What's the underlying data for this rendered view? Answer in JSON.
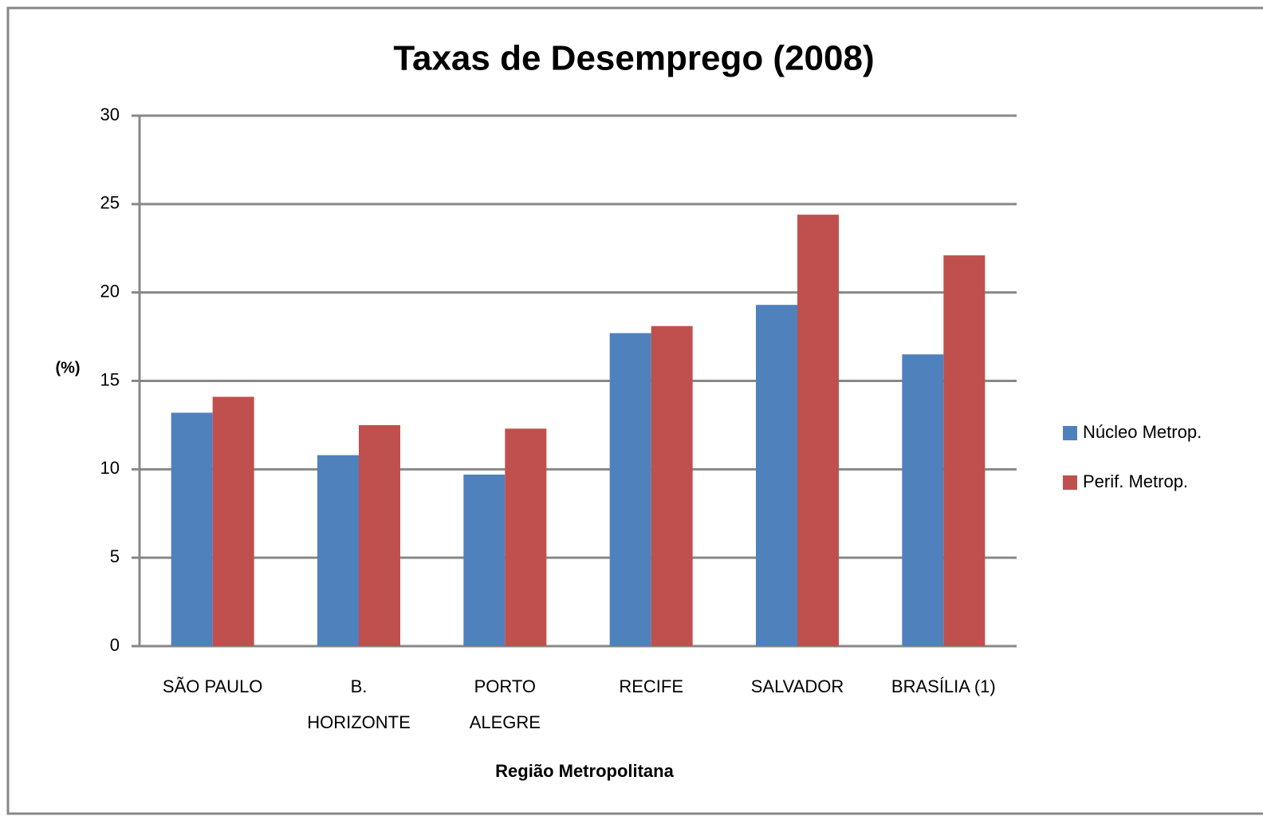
{
  "chart_data": {
    "type": "bar",
    "title": "Taxas de Desemprego (2008)",
    "x_label": "Região Metropolitana",
    "y_label": "(%)",
    "categories": [
      "SÃO PAULO",
      "B. HORIZONTE",
      "PORTO ALEGRE",
      "RECIFE",
      "SALVADOR",
      "BRASÍLIA (1)"
    ],
    "series": [
      {
        "name": "Núcleo Metrop.",
        "color": "#4f81bd",
        "values": [
          13.2,
          10.8,
          9.7,
          17.7,
          19.3,
          16.5
        ]
      },
      {
        "name": "Perif. Metrop.",
        "color": "#c0504d",
        "values": [
          14.1,
          12.5,
          12.3,
          18.1,
          24.4,
          22.1
        ]
      }
    ],
    "ylim": [
      0,
      30
    ],
    "yticks": [
      0,
      5,
      10,
      15,
      20,
      25,
      30
    ],
    "grid": true,
    "legend": "right"
  }
}
